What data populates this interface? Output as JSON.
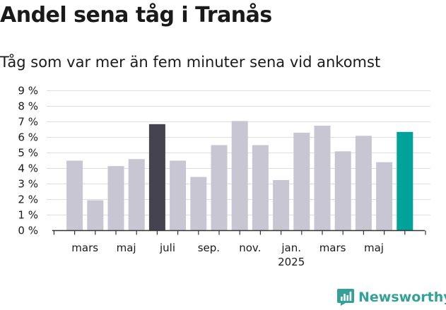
{
  "header": {
    "title": "Andel sena tåg i Tranås",
    "subtitle": "Tåg som var mer än fem minuter sena vid ankomst"
  },
  "brand": {
    "name": "Newsworthy",
    "icon": "newsworthy-logo-icon",
    "color": "#34a199"
  },
  "colors": {
    "default_bar": "#c8c6d2",
    "highlight_dark": "#44434f",
    "highlight_current": "#00a39a",
    "grid": "#dddddd",
    "axis": "#333333"
  },
  "chart_data": {
    "type": "bar",
    "categories": [
      "",
      "mars",
      "",
      "maj",
      "",
      "juli",
      "",
      "sep.",
      "",
      "nov.",
      "",
      "jan.\n2025",
      "",
      "mars",
      "",
      "maj",
      ""
    ],
    "values": [
      4.5,
      1.95,
      4.15,
      4.6,
      6.85,
      4.5,
      3.45,
      5.5,
      7.05,
      5.5,
      3.25,
      6.3,
      6.75,
      5.1,
      6.1,
      4.4,
      6.35
    ],
    "highlight": [
      null,
      null,
      null,
      null,
      "dark",
      null,
      null,
      null,
      null,
      null,
      null,
      null,
      null,
      null,
      null,
      null,
      "current"
    ],
    "y_ticks": [
      "0 %",
      "1 %",
      "2 %",
      "3 %",
      "4 %",
      "5 %",
      "6 %",
      "7 %",
      "8 %",
      "9 %"
    ],
    "ylim": [
      0,
      9
    ],
    "xlabel": "",
    "ylabel": "",
    "grid": true,
    "legend": "none"
  }
}
